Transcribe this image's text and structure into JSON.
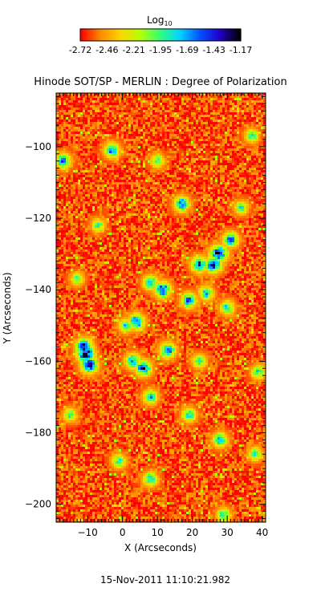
{
  "chart_data": {
    "type": "heatmap",
    "title": "Hinode SOT/SP - MERLIN : Degree of Polarization",
    "xlabel": "X (Arcseconds)",
    "ylabel": "Y (Arcseconds)",
    "timestamp": "15-Nov-2011 11:10:21.982",
    "xlim": [
      -19,
      41
    ],
    "ylim": [
      -205,
      -85
    ],
    "x_ticks": [
      -10,
      0,
      10,
      20,
      30,
      40
    ],
    "y_ticks": [
      -100,
      -120,
      -140,
      -160,
      -180,
      -200
    ],
    "colorbar": {
      "label": "Log10",
      "label_base": "Log",
      "label_sub": "10",
      "tick_labels": [
        "-2.72",
        "-2.46",
        "-2.21",
        "-1.95",
        "-1.69",
        "-1.43",
        "-1.17"
      ],
      "range": [
        -2.72,
        -1.17
      ],
      "colors": [
        "#ff0000",
        "#ff8c00",
        "#ffd400",
        "#b4ff00",
        "#32ff7a",
        "#00d2ff",
        "#0050ff",
        "#1e00c8",
        "#000000"
      ]
    },
    "background_level": -2.62,
    "features": [
      {
        "x": -10.5,
        "y": -158,
        "value": -1.25
      },
      {
        "x": -9.5,
        "y": -161,
        "value": -1.3
      },
      {
        "x": -11,
        "y": -156,
        "value": -1.35
      },
      {
        "x": 27.5,
        "y": -130,
        "value": -1.3
      },
      {
        "x": 26,
        "y": -133,
        "value": -1.35
      },
      {
        "x": 22,
        "y": -133,
        "value": -1.5
      },
      {
        "x": 31,
        "y": -126,
        "value": -1.6
      },
      {
        "x": 11.5,
        "y": -140,
        "value": -1.45
      },
      {
        "x": 8,
        "y": -138,
        "value": -1.7
      },
      {
        "x": 4,
        "y": -149,
        "value": -1.5
      },
      {
        "x": 6,
        "y": -162,
        "value": -1.45
      },
      {
        "x": 3,
        "y": -160,
        "value": -1.6
      },
      {
        "x": 13,
        "y": -157,
        "value": -1.55
      },
      {
        "x": 1,
        "y": -150,
        "value": -1.8
      },
      {
        "x": 19,
        "y": -143,
        "value": -1.6
      },
      {
        "x": 24,
        "y": -141,
        "value": -1.75
      },
      {
        "x": 30,
        "y": -145,
        "value": -1.8
      },
      {
        "x": -3,
        "y": -101,
        "value": -1.6
      },
      {
        "x": 17,
        "y": -116,
        "value": -1.6
      },
      {
        "x": 10,
        "y": -104,
        "value": -1.9
      },
      {
        "x": -17,
        "y": -104,
        "value": -1.6
      },
      {
        "x": 8,
        "y": -170,
        "value": -1.75
      },
      {
        "x": 19,
        "y": -175,
        "value": -1.8
      },
      {
        "x": 28,
        "y": -182,
        "value": -1.7
      },
      {
        "x": -1,
        "y": -188,
        "value": -1.85
      },
      {
        "x": 8,
        "y": -193,
        "value": -1.75
      },
      {
        "x": 29,
        "y": -203,
        "value": -1.85
      },
      {
        "x": 38,
        "y": -186,
        "value": -1.9
      },
      {
        "x": -15,
        "y": -175,
        "value": -1.9
      },
      {
        "x": 34,
        "y": -117,
        "value": -1.9
      },
      {
        "x": 37,
        "y": -97,
        "value": -1.9
      },
      {
        "x": 22,
        "y": -160,
        "value": -1.85
      },
      {
        "x": 39,
        "y": -163,
        "value": -1.85
      },
      {
        "x": -13,
        "y": -137,
        "value": -1.95
      },
      {
        "x": -7,
        "y": -122,
        "value": -1.95
      }
    ]
  }
}
